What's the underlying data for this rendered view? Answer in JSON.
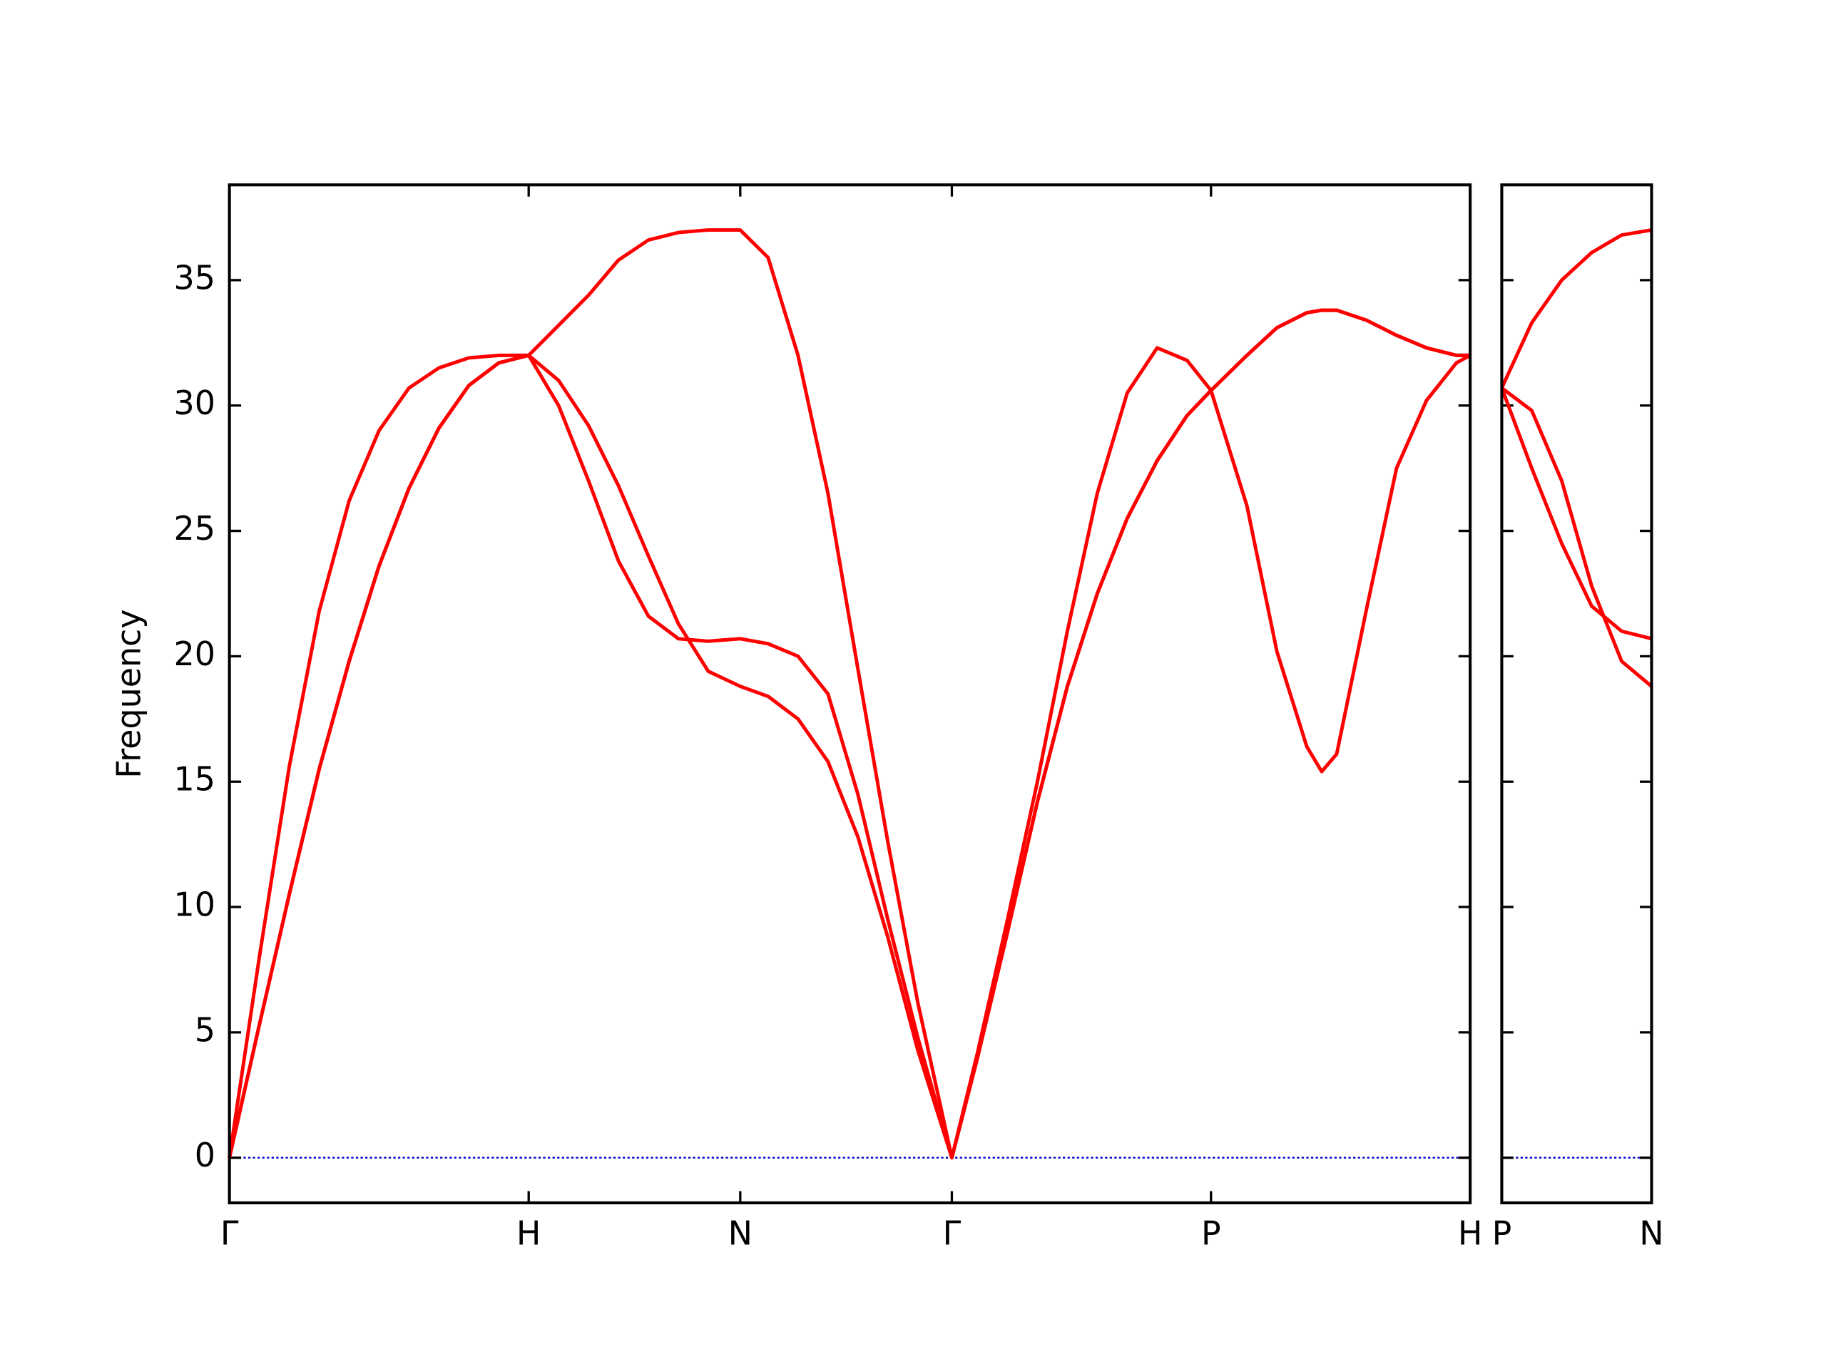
{
  "chart_data": [
    {
      "type": "line",
      "ylabel": "Frequency",
      "x": [
        0,
        0.1,
        0.2,
        0.3,
        0.4,
        0.5,
        0.6,
        0.7,
        0.8,
        0.9,
        1.0,
        1.1,
        1.2,
        1.3,
        1.4,
        1.5,
        1.6,
        1.707,
        1.8,
        1.9,
        2.0,
        2.1,
        2.2,
        2.3,
        2.414,
        2.5,
        2.6,
        2.7,
        2.8,
        2.9,
        3.0,
        3.1,
        3.2,
        3.28,
        3.4,
        3.5,
        3.6,
        3.65,
        3.7,
        3.8,
        3.9,
        4.0,
        4.1,
        4.146
      ],
      "xlim": [
        0,
        4.146
      ],
      "xticks": [
        {
          "value": 0,
          "label": "Γ"
        },
        {
          "value": 1.0,
          "label": "H"
        },
        {
          "value": 1.707,
          "label": "N"
        },
        {
          "value": 2.414,
          "label": "Γ"
        },
        {
          "value": 3.28,
          "label": "P"
        },
        {
          "value": 4.146,
          "label": "H"
        }
      ],
      "ylim": [
        -1.8,
        38.8
      ],
      "yticks": [
        0,
        5,
        10,
        15,
        20,
        25,
        30,
        35
      ],
      "ytick_labels": true,
      "zero_line": true,
      "zero_line_color": "#0000cc",
      "series": [
        {
          "color": "#ff0000",
          "values": [
            0,
            5.3,
            10.5,
            15.5,
            19.8,
            23.6,
            26.7,
            29.1,
            30.8,
            31.7,
            32.0,
            31.0,
            29.2,
            26.8,
            24.0,
            21.3,
            19.4,
            18.8,
            18.4,
            17.5,
            15.8,
            12.8,
            8.8,
            4.3,
            0,
            4.0,
            9.0,
            14.2,
            18.8,
            22.5,
            25.5,
            27.8,
            29.6,
            30.6,
            26.0,
            20.2,
            16.4,
            15.4,
            16.1,
            21.9,
            27.5,
            30.2,
            31.7,
            32.0
          ]
        },
        {
          "color": "#ff0000",
          "values": [
            0,
            5.3,
            10.5,
            15.5,
            19.8,
            23.6,
            26.7,
            29.1,
            30.8,
            31.7,
            32.0,
            30.0,
            27.0,
            23.8,
            21.6,
            20.7,
            20.6,
            20.7,
            20.5,
            20.0,
            18.5,
            14.5,
            9.5,
            4.8,
            0,
            4.2,
            9.5,
            15.0,
            21.0,
            26.5,
            30.5,
            32.3,
            31.8,
            30.6,
            32.0,
            33.1,
            33.7,
            33.8,
            33.8,
            33.4,
            32.8,
            32.3,
            32.0,
            32.0
          ]
        },
        {
          "color": "#ff0000",
          "values": [
            0,
            8.0,
            15.6,
            21.8,
            26.2,
            29.0,
            30.7,
            31.5,
            31.9,
            32.0,
            32.0,
            33.2,
            34.4,
            35.8,
            36.6,
            36.9,
            37.0,
            37.0,
            35.9,
            32.0,
            26.5,
            19.5,
            12.6,
            6.2,
            0,
            4.0,
            9.0,
            14.2,
            18.8,
            22.5,
            25.5,
            27.8,
            29.6,
            30.6,
            32.0,
            33.1,
            33.7,
            33.8,
            33.8,
            33.4,
            32.8,
            32.3,
            32.0,
            32.0
          ]
        }
      ]
    },
    {
      "type": "line",
      "x": [
        0,
        0.1,
        0.2,
        0.3,
        0.4,
        0.5
      ],
      "xlim": [
        0,
        0.5
      ],
      "xticks": [
        {
          "value": 0,
          "label": "P"
        },
        {
          "value": 0.5,
          "label": "N"
        }
      ],
      "ylim": [
        -1.8,
        38.8
      ],
      "yticks": [
        0,
        5,
        10,
        15,
        20,
        25,
        30,
        35
      ],
      "ytick_labels": false,
      "zero_line": true,
      "zero_line_color": "#0000cc",
      "series": [
        {
          "color": "#ff0000",
          "values": [
            30.7,
            29.8,
            27.0,
            22.8,
            19.8,
            18.8
          ]
        },
        {
          "color": "#ff0000",
          "values": [
            30.7,
            27.5,
            24.5,
            22.0,
            21.0,
            20.7
          ]
        },
        {
          "color": "#ff0000",
          "values": [
            30.7,
            33.3,
            35.0,
            36.1,
            36.8,
            37.0
          ]
        }
      ]
    }
  ]
}
